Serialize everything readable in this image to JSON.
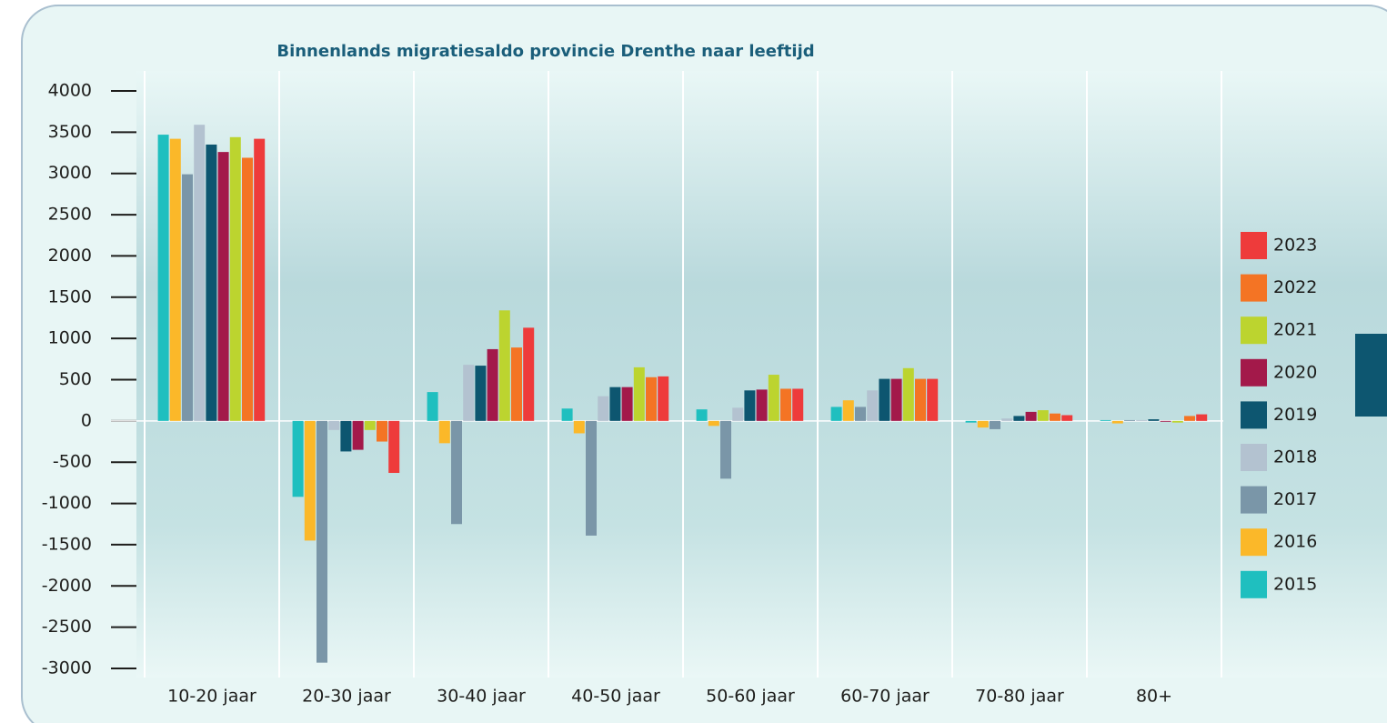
{
  "chart_data": {
    "type": "bar",
    "title": "Binnenlands migratiesaldo provincie Drenthe naar leeftijd",
    "categories": [
      "10-20 jaar",
      "20-30 jaar",
      "30-40 jaar",
      "40-50 jaar",
      "50-60 jaar",
      "60-70 jaar",
      "70-80 jaar",
      "80+"
    ],
    "series": [
      {
        "name": "2015",
        "color": "#1fbfbf",
        "values": [
          3470,
          -920,
          350,
          150,
          140,
          170,
          -20,
          10
        ]
      },
      {
        "name": "2016",
        "color": "#fbb829",
        "values": [
          3420,
          -1450,
          -270,
          -150,
          -60,
          250,
          -80,
          -30
        ]
      },
      {
        "name": "2017",
        "color": "#7a96a8",
        "values": [
          2990,
          -2930,
          -1250,
          -1390,
          -700,
          170,
          -100,
          10
        ]
      },
      {
        "name": "2018",
        "color": "#b3c2d0",
        "values": [
          3590,
          -110,
          680,
          300,
          160,
          370,
          30,
          10
        ]
      },
      {
        "name": "2019",
        "color": "#0d5670",
        "values": [
          3350,
          -370,
          670,
          410,
          370,
          510,
          60,
          20
        ]
      },
      {
        "name": "2020",
        "color": "#a3194a",
        "values": [
          3260,
          -350,
          870,
          410,
          380,
          510,
          110,
          -10
        ]
      },
      {
        "name": "2021",
        "color": "#bcd42f",
        "values": [
          3440,
          -110,
          1340,
          650,
          560,
          640,
          130,
          -20
        ]
      },
      {
        "name": "2022",
        "color": "#f47424",
        "values": [
          3190,
          -250,
          890,
          530,
          390,
          510,
          90,
          60
        ]
      },
      {
        "name": "2023",
        "color": "#ee3b3b",
        "values": [
          3420,
          -630,
          1130,
          540,
          390,
          510,
          70,
          80
        ]
      }
    ],
    "ylim": [
      -3000,
      4000
    ],
    "yticks": [
      -3000,
      -2500,
      -2000,
      -1500,
      -1000,
      -500,
      0,
      500,
      1000,
      1500,
      2000,
      2500,
      3000,
      3500,
      4000
    ],
    "legend": "right"
  }
}
